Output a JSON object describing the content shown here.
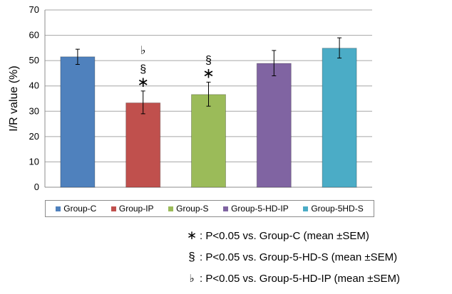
{
  "chart_data": {
    "type": "bar",
    "categories": [
      "Group-C",
      "Group-IP",
      "Group-S",
      "Group-5-HD-IP",
      "Group-5HD-S"
    ],
    "values": [
      51.5,
      33.3,
      36.6,
      48.9,
      54.9
    ],
    "error_upper": [
      54.5,
      38.0,
      41.5,
      54.0,
      59.0
    ],
    "error_lower": [
      48.5,
      29.0,
      32.0,
      44.0,
      51.0
    ],
    "colors": [
      "#4f81bd",
      "#c0504d",
      "#9bbb59",
      "#8064a2",
      "#4bacc6"
    ],
    "ylabel": "I/R value (%)",
    "xlabel": "",
    "ylim": [
      0,
      70
    ],
    "yticks": [
      "0",
      "10",
      "20",
      "30",
      "40",
      "50",
      "60",
      "70"
    ],
    "grid": true,
    "legend_position": "bottom",
    "significance_marks": [
      [],
      [
        "♭",
        "§",
        "∗"
      ],
      [
        "§",
        "∗"
      ],
      [],
      []
    ]
  },
  "notes": [
    {
      "symbol": "∗",
      "text": ": P<0.05 vs. Group-C (mean ±SEM)"
    },
    {
      "symbol": "§",
      "text": ": P<0.05 vs. Group-5-HD-S (mean ±SEM)"
    },
    {
      "symbol": "♭",
      "text": ": P<0.05 vs. Group-5-HD-IP (mean ±SEM)"
    }
  ]
}
